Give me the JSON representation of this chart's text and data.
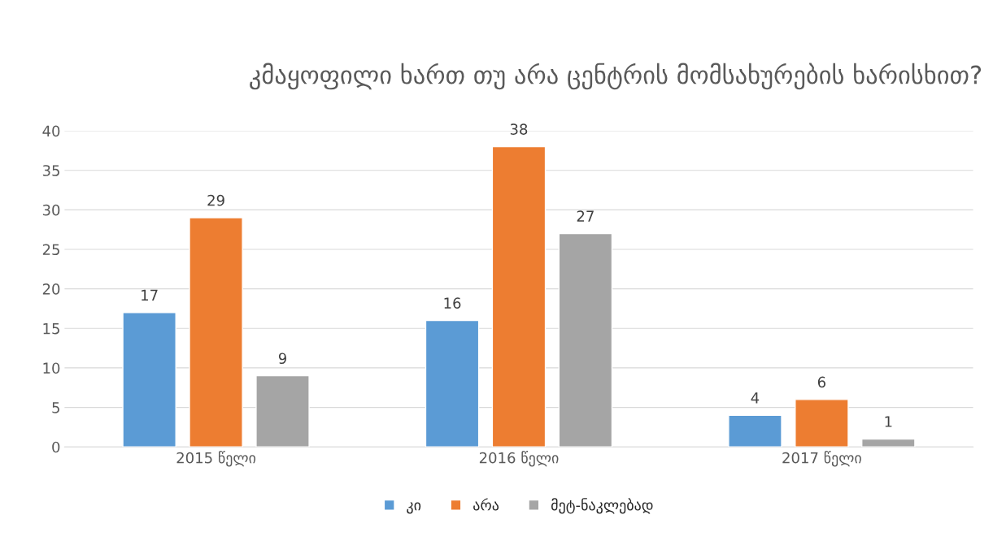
{
  "chart_data": {
    "type": "bar",
    "title": "კმაყოფილი ხართ თუ არა ცენტრის მომსახურების ხარისხით?",
    "categories": [
      "2015 წელი",
      "2016 წელი",
      "2017 წელი"
    ],
    "series": [
      {
        "name": "კი",
        "color": "#5b9bd5",
        "values": [
          17,
          16,
          4
        ]
      },
      {
        "name": "არა",
        "color": "#ed7d31",
        "values": [
          29,
          38,
          6
        ]
      },
      {
        "name": "მეტ-ნაკლებად",
        "color": "#a5a5a5",
        "values": [
          9,
          27,
          1
        ]
      }
    ],
    "ylim": [
      0,
      40
    ],
    "yticks": [
      0,
      5,
      10,
      15,
      20,
      25,
      30,
      35,
      40
    ],
    "grid": "y",
    "legend": "bottom",
    "data_labels": true
  }
}
